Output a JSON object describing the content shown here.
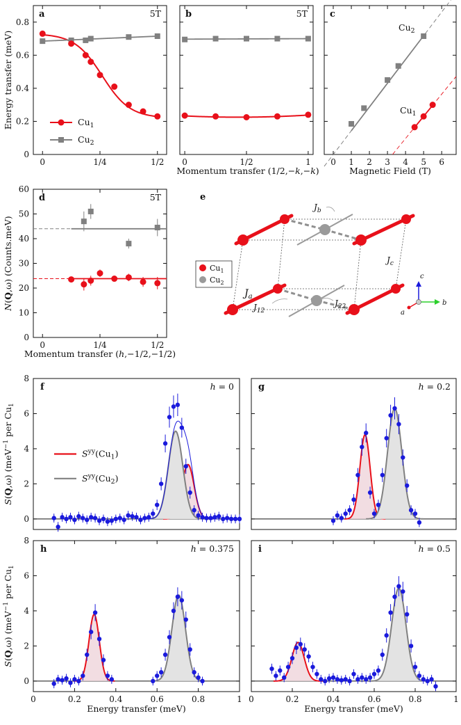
{
  "colors": {
    "cu1": "#e8101a",
    "cu2": "#808080",
    "data": "#1a1adc",
    "fill1": "#f2dde2",
    "fill2": "#e3e3e3"
  },
  "chart_data": [
    {
      "panel": "a",
      "type": "scatter",
      "annotation": "5T",
      "ylabel": "Energy transfer (meV)",
      "ylim": [
        0,
        0.9
      ],
      "xlim": [
        -0.04,
        0.54
      ],
      "xticks": [
        {
          "v": 0,
          "t": "0"
        },
        {
          "v": 0.25,
          "t": "1/4"
        },
        {
          "v": 0.5,
          "t": "1/2"
        }
      ],
      "yticks": [
        {
          "v": 0,
          "t": "0"
        },
        {
          "v": 0.2,
          "t": "0.2"
        },
        {
          "v": 0.4,
          "t": "0.4"
        },
        {
          "v": 0.6,
          "t": "0.6"
        },
        {
          "v": 0.8,
          "t": "0.8"
        }
      ],
      "legend": [
        "Cu1",
        "Cu2"
      ],
      "series": [
        {
          "name": "Cu1",
          "x": [
            0,
            0.125,
            0.1875,
            0.21,
            0.25,
            0.3125,
            0.375,
            0.4375,
            0.5
          ],
          "y": [
            0.73,
            0.67,
            0.6,
            0.56,
            0.48,
            0.41,
            0.3,
            0.26,
            0.23
          ]
        },
        {
          "name": "Cu2",
          "x": [
            0,
            0.125,
            0.1875,
            0.21,
            0.375,
            0.5
          ],
          "y": [
            0.685,
            0.69,
            0.69,
            0.7,
            0.71,
            0.715
          ]
        }
      ]
    },
    {
      "panel": "b",
      "type": "scatter",
      "annotation": "5T",
      "xlabel": "Momentum transfer (1/2,−k,−k)",
      "ylim": [
        0,
        0.9
      ],
      "xlim": [
        -0.04,
        1.04
      ],
      "xticks": [
        {
          "v": 0,
          "t": "0"
        },
        {
          "v": 0.5,
          "t": "1/2"
        },
        {
          "v": 1,
          "t": "1"
        }
      ],
      "series": [
        {
          "name": "Cu1",
          "x": [
            0,
            0.25,
            0.5,
            0.75,
            1
          ],
          "y": [
            0.235,
            0.23,
            0.225,
            0.23,
            0.24
          ]
        },
        {
          "name": "Cu2",
          "x": [
            0,
            0.25,
            0.5,
            0.75,
            1
          ],
          "y": [
            0.695,
            0.7,
            0.7,
            0.7,
            0.7
          ]
        }
      ]
    },
    {
      "panel": "c",
      "type": "scatter",
      "xlabel": "Magnetic Field (T)",
      "ylim": [
        0,
        0.9
      ],
      "xlim": [
        -0.5,
        6.8
      ],
      "xticks": [
        {
          "v": 0,
          "t": "0"
        },
        {
          "v": 1,
          "t": "1"
        },
        {
          "v": 2,
          "t": "2"
        },
        {
          "v": 3,
          "t": "3"
        },
        {
          "v": 4,
          "t": "4"
        },
        {
          "v": 5,
          "t": "5"
        },
        {
          "v": 6,
          "t": "6"
        }
      ],
      "labels": [
        "Cu2",
        "Cu1"
      ],
      "series": [
        {
          "name": "Cu2",
          "x": [
            1,
            1.7,
            3,
            3.6,
            5
          ],
          "y": [
            0.185,
            0.28,
            0.45,
            0.535,
            0.715
          ]
        },
        {
          "name": "Cu1",
          "x": [
            4.5,
            5,
            5.5
          ],
          "y": [
            0.165,
            0.23,
            0.3
          ]
        }
      ]
    },
    {
      "panel": "d",
      "type": "scatter",
      "annotation": "5T",
      "ylabel": "N(Q,ω) (Counts.meV)",
      "xlabel": "Momentum transfer (h,−1/2,−1/2)",
      "ylim": [
        0,
        60
      ],
      "xlim": [
        -0.04,
        0.54
      ],
      "xticks": [
        {
          "v": 0,
          "t": "0"
        },
        {
          "v": 0.25,
          "t": "1/4"
        },
        {
          "v": 0.5,
          "t": "1/2"
        }
      ],
      "yticks": [
        {
          "v": 0,
          "t": "0"
        },
        {
          "v": 10,
          "t": "10"
        },
        {
          "v": 20,
          "t": "20"
        },
        {
          "v": 30,
          "t": "30"
        },
        {
          "v": 40,
          "t": "40"
        },
        {
          "v": 50,
          "t": "50"
        },
        {
          "v": 60,
          "t": "60"
        }
      ],
      "series": [
        {
          "name": "Cu2",
          "x": [
            0.18,
            0.21,
            0.375,
            0.5
          ],
          "y": [
            47,
            51,
            38,
            44.5
          ],
          "err": [
            4,
            3,
            2,
            3.5
          ]
        },
        {
          "name": "Cu1",
          "x": [
            0.125,
            0.18,
            0.21,
            0.25,
            0.3125,
            0.375,
            0.4375,
            0.5
          ],
          "y": [
            23.5,
            21.5,
            23,
            26,
            23.8,
            24.3,
            22.5,
            22
          ],
          "err": [
            1,
            2.5,
            2,
            1.5,
            1,
            1.5,
            2,
            2.5
          ]
        }
      ]
    },
    {
      "panel": "f",
      "type": "scatter",
      "annotation": "h = 0",
      "ylabel": "S(Q,ω) (meV−1 per Cu1)",
      "ylim": [
        -0.6,
        8
      ],
      "xlim": [
        0,
        1
      ],
      "yticks": [
        {
          "v": 0,
          "t": "0"
        },
        {
          "v": 2,
          "t": "2"
        },
        {
          "v": 4,
          "t": "4"
        },
        {
          "v": 6,
          "t": "6"
        },
        {
          "v": 8,
          "t": "8"
        }
      ],
      "legend": [
        "Syy(Cu1)",
        "Syy(Cu2)"
      ],
      "gauss": {
        "cu1": {
          "amp": 3.1,
          "mu": 0.75,
          "sigma": 0.03
        },
        "cu2": {
          "amp": 5.0,
          "mu": 0.69,
          "sigma": 0.035
        },
        "total": true
      },
      "x": [
        0.1,
        0.12,
        0.14,
        0.16,
        0.18,
        0.2,
        0.22,
        0.24,
        0.26,
        0.28,
        0.3,
        0.32,
        0.34,
        0.36,
        0.38,
        0.4,
        0.42,
        0.44,
        0.46,
        0.48,
        0.5,
        0.52,
        0.54,
        0.56,
        0.58,
        0.6,
        0.62,
        0.64,
        0.66,
        0.68,
        0.7,
        0.72,
        0.74,
        0.76,
        0.78,
        0.8,
        0.82,
        0.84,
        0.86,
        0.88,
        0.9,
        0.92,
        0.94,
        0.96,
        0.98,
        1.0
      ],
      "y": [
        0.05,
        -0.45,
        0.1,
        0.0,
        0.1,
        -0.05,
        0.15,
        0.05,
        -0.05,
        0.1,
        0.05,
        -0.1,
        0.0,
        -0.15,
        -0.1,
        0.0,
        0.05,
        -0.05,
        0.2,
        0.15,
        0.1,
        -0.05,
        0.05,
        0.1,
        0.3,
        0.8,
        2.0,
        4.3,
        5.8,
        6.4,
        6.5,
        5.2,
        3.0,
        1.5,
        0.5,
        0.2,
        0.1,
        0.05,
        0.05,
        0.1,
        0.15,
        0.0,
        0.05,
        0.0,
        0.0,
        0.0
      ]
    },
    {
      "panel": "g",
      "type": "scatter",
      "annotation": "h = 0.2",
      "ylim": [
        -0.6,
        8
      ],
      "xlim": [
        0,
        1
      ],
      "yticks": [
        {
          "v": 0,
          "t": "0"
        },
        {
          "v": 2,
          "t": "2"
        },
        {
          "v": 4,
          "t": "4"
        },
        {
          "v": 6,
          "t": "6"
        },
        {
          "v": 8,
          "t": "8"
        }
      ],
      "gauss": {
        "cu1": {
          "amp": 4.8,
          "mu": 0.555,
          "sigma": 0.025
        },
        "cu2": {
          "amp": 6.3,
          "mu": 0.7,
          "sigma": 0.035
        }
      },
      "x": [
        0.4,
        0.42,
        0.44,
        0.46,
        0.48,
        0.5,
        0.52,
        0.54,
        0.56,
        0.58,
        0.6,
        0.62,
        0.64,
        0.66,
        0.68,
        0.7,
        0.72,
        0.74,
        0.76,
        0.78,
        0.8,
        0.82
      ],
      "y": [
        -0.1,
        0.2,
        0.05,
        0.3,
        0.5,
        1.1,
        2.5,
        4.1,
        4.9,
        1.5,
        0.3,
        0.8,
        2.5,
        4.6,
        5.9,
        6.3,
        5.4,
        3.5,
        1.9,
        0.5,
        0.3,
        -0.2
      ]
    },
    {
      "panel": "h",
      "type": "scatter",
      "annotation": "h = 0.375",
      "ylabel": "S(Q,ω) (meV−1 per Cu1)",
      "xlabel": "Energy transfer (meV)",
      "ylim": [
        -0.6,
        8
      ],
      "xlim": [
        0,
        1
      ],
      "xticks": [
        {
          "v": 0,
          "t": "0"
        },
        {
          "v": 0.2,
          "t": "0.2"
        },
        {
          "v": 0.4,
          "t": "0.4"
        },
        {
          "v": 0.6,
          "t": "0.6"
        },
        {
          "v": 0.8,
          "t": "0.8"
        },
        {
          "v": 1,
          "t": "1"
        }
      ],
      "yticks": [
        {
          "v": 0,
          "t": "0"
        },
        {
          "v": 2,
          "t": "2"
        },
        {
          "v": 4,
          "t": "4"
        },
        {
          "v": 6,
          "t": "6"
        },
        {
          "v": 8,
          "t": "8"
        }
      ],
      "gauss": {
        "cu1": {
          "amp": 3.8,
          "mu": 0.295,
          "sigma": 0.025
        },
        "cu2": {
          "amp": 4.9,
          "mu": 0.705,
          "sigma": 0.033
        }
      },
      "x": [
        0.1,
        0.12,
        0.14,
        0.16,
        0.18,
        0.2,
        0.22,
        0.24,
        0.26,
        0.28,
        0.3,
        0.32,
        0.34,
        0.36,
        0.38,
        0.58,
        0.6,
        0.62,
        0.64,
        0.66,
        0.68,
        0.7,
        0.72,
        0.74,
        0.76,
        0.78,
        0.8,
        0.82
      ],
      "y": [
        -0.15,
        0.1,
        0.05,
        0.15,
        -0.1,
        0.1,
        0.0,
        0.3,
        1.5,
        2.8,
        3.9,
        2.4,
        1.2,
        0.3,
        0.1,
        0.0,
        0.3,
        0.5,
        1.5,
        2.5,
        4.0,
        4.8,
        4.6,
        3.5,
        1.8,
        0.5,
        0.2,
        0.0
      ]
    },
    {
      "panel": "i",
      "type": "scatter",
      "annotation": "h = 0.5",
      "xlabel": "Energy transfer (meV)",
      "ylim": [
        -0.6,
        8
      ],
      "xlim": [
        0,
        1
      ],
      "xticks": [
        {
          "v": 0,
          "t": "0"
        },
        {
          "v": 0.2,
          "t": "0.2"
        },
        {
          "v": 0.4,
          "t": "0.4"
        },
        {
          "v": 0.6,
          "t": "0.6"
        },
        {
          "v": 0.8,
          "t": "0.8"
        },
        {
          "v": 1,
          "t": "1"
        }
      ],
      "yticks": [
        {
          "v": 0,
          "t": "0"
        },
        {
          "v": 2,
          "t": "2"
        },
        {
          "v": 4,
          "t": "4"
        },
        {
          "v": 6,
          "t": "6"
        },
        {
          "v": 8,
          "t": "8"
        }
      ],
      "gauss": {
        "cu1": {
          "amp": 2.2,
          "mu": 0.228,
          "sigma": 0.03
        },
        "cu2": {
          "amp": 5.3,
          "mu": 0.72,
          "sigma": 0.035
        }
      },
      "x": [
        0.1,
        0.12,
        0.14,
        0.16,
        0.18,
        0.2,
        0.22,
        0.24,
        0.26,
        0.28,
        0.3,
        0.32,
        0.34,
        0.36,
        0.38,
        0.4,
        0.42,
        0.44,
        0.46,
        0.48,
        0.5,
        0.52,
        0.54,
        0.56,
        0.58,
        0.6,
        0.62,
        0.64,
        0.66,
        0.68,
        0.7,
        0.72,
        0.74,
        0.76,
        0.78,
        0.8,
        0.82,
        0.84,
        0.86,
        0.88,
        0.9
      ],
      "y": [
        0.7,
        0.3,
        0.6,
        0.2,
        0.8,
        1.3,
        1.9,
        2.1,
        1.8,
        1.4,
        0.8,
        0.4,
        0.1,
        0.0,
        0.15,
        0.2,
        0.1,
        0.05,
        0.1,
        0.0,
        0.4,
        0.1,
        0.2,
        0.1,
        0.2,
        0.4,
        0.6,
        1.5,
        2.6,
        3.9,
        4.8,
        5.4,
        5.1,
        3.8,
        2.0,
        0.8,
        0.3,
        0.1,
        0.0,
        0.1,
        -0.3
      ]
    }
  ],
  "panel_e": {
    "label": "e",
    "legend": [
      {
        "name": "Cu",
        "sub": "1"
      },
      {
        "name": "Cu",
        "sub": "2"
      }
    ],
    "couplings": [
      {
        "name": "J",
        "sub": "a"
      },
      {
        "name": "J",
        "sub": "b"
      },
      {
        "name": "J",
        "sub": "c"
      },
      {
        "name": "J",
        "sub": "12"
      },
      {
        "name": "J",
        "sub": "22"
      }
    ],
    "axes": [
      "a",
      "b",
      "c"
    ]
  }
}
